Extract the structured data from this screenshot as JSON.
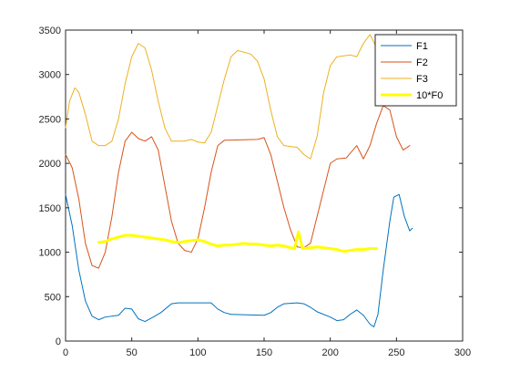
{
  "chart_data": {
    "type": "line",
    "xlim": [
      0,
      300
    ],
    "ylim": [
      0,
      3500
    ],
    "xticks": [
      0,
      50,
      100,
      150,
      200,
      250,
      300
    ],
    "yticks": [
      0,
      500,
      1000,
      1500,
      2000,
      2500,
      3000,
      3500
    ],
    "grid": false,
    "legend_position": "top-right",
    "series": [
      {
        "name": "F1",
        "color": "#0072BD",
        "width": 1,
        "points": [
          [
            0,
            1650
          ],
          [
            5,
            1300
          ],
          [
            10,
            800
          ],
          [
            15,
            450
          ],
          [
            20,
            280
          ],
          [
            25,
            240
          ],
          [
            30,
            270
          ],
          [
            40,
            290
          ],
          [
            45,
            370
          ],
          [
            50,
            360
          ],
          [
            55,
            250
          ],
          [
            60,
            220
          ],
          [
            65,
            260
          ],
          [
            72,
            320
          ],
          [
            80,
            420
          ],
          [
            85,
            430
          ],
          [
            110,
            430
          ],
          [
            115,
            360
          ],
          [
            120,
            320
          ],
          [
            125,
            300
          ],
          [
            150,
            290
          ],
          [
            155,
            320
          ],
          [
            160,
            380
          ],
          [
            165,
            420
          ],
          [
            175,
            430
          ],
          [
            180,
            420
          ],
          [
            185,
            380
          ],
          [
            190,
            330
          ],
          [
            200,
            270
          ],
          [
            205,
            230
          ],
          [
            210,
            240
          ],
          [
            215,
            300
          ],
          [
            220,
            350
          ],
          [
            225,
            290
          ],
          [
            230,
            190
          ],
          [
            233,
            160
          ],
          [
            236,
            300
          ],
          [
            240,
            800
          ],
          [
            245,
            1350
          ],
          [
            248,
            1620
          ],
          [
            252,
            1650
          ],
          [
            256,
            1400
          ],
          [
            260,
            1240
          ],
          [
            262,
            1270
          ]
        ]
      },
      {
        "name": "F2",
        "color": "#D95319",
        "width": 1,
        "points": [
          [
            0,
            2100
          ],
          [
            5,
            1950
          ],
          [
            10,
            1600
          ],
          [
            15,
            1100
          ],
          [
            20,
            850
          ],
          [
            25,
            820
          ],
          [
            30,
            1000
          ],
          [
            35,
            1400
          ],
          [
            40,
            1900
          ],
          [
            45,
            2250
          ],
          [
            50,
            2350
          ],
          [
            55,
            2280
          ],
          [
            60,
            2250
          ],
          [
            65,
            2300
          ],
          [
            70,
            2150
          ],
          [
            75,
            1750
          ],
          [
            80,
            1350
          ],
          [
            85,
            1100
          ],
          [
            90,
            1020
          ],
          [
            95,
            1000
          ],
          [
            100,
            1150
          ],
          [
            105,
            1500
          ],
          [
            110,
            1900
          ],
          [
            115,
            2200
          ],
          [
            120,
            2260
          ],
          [
            145,
            2270
          ],
          [
            150,
            2290
          ],
          [
            155,
            2100
          ],
          [
            160,
            1800
          ],
          [
            165,
            1500
          ],
          [
            170,
            1250
          ],
          [
            175,
            1060
          ],
          [
            180,
            1050
          ],
          [
            185,
            1100
          ],
          [
            190,
            1400
          ],
          [
            195,
            1700
          ],
          [
            200,
            2000
          ],
          [
            205,
            2050
          ],
          [
            212,
            2060
          ],
          [
            220,
            2200
          ],
          [
            225,
            2050
          ],
          [
            230,
            2200
          ],
          [
            235,
            2450
          ],
          [
            240,
            2650
          ],
          [
            245,
            2600
          ],
          [
            250,
            2300
          ],
          [
            255,
            2150
          ],
          [
            260,
            2200
          ]
        ]
      },
      {
        "name": "F3",
        "color": "#EDB120",
        "width": 1,
        "points": [
          [
            0,
            2400
          ],
          [
            3,
            2700
          ],
          [
            7,
            2850
          ],
          [
            10,
            2800
          ],
          [
            15,
            2550
          ],
          [
            20,
            2250
          ],
          [
            25,
            2200
          ],
          [
            30,
            2200
          ],
          [
            35,
            2250
          ],
          [
            40,
            2500
          ],
          [
            45,
            2900
          ],
          [
            50,
            3200
          ],
          [
            55,
            3350
          ],
          [
            60,
            3300
          ],
          [
            65,
            3050
          ],
          [
            70,
            2700
          ],
          [
            75,
            2400
          ],
          [
            80,
            2250
          ],
          [
            90,
            2250
          ],
          [
            95,
            2270
          ],
          [
            100,
            2240
          ],
          [
            105,
            2230
          ],
          [
            110,
            2350
          ],
          [
            115,
            2650
          ],
          [
            120,
            2950
          ],
          [
            125,
            3200
          ],
          [
            130,
            3270
          ],
          [
            140,
            3230
          ],
          [
            145,
            3150
          ],
          [
            150,
            2950
          ],
          [
            155,
            2600
          ],
          [
            160,
            2300
          ],
          [
            165,
            2200
          ],
          [
            175,
            2180
          ],
          [
            180,
            2100
          ],
          [
            185,
            2050
          ],
          [
            190,
            2300
          ],
          [
            195,
            2800
          ],
          [
            200,
            3100
          ],
          [
            205,
            3200
          ],
          [
            215,
            3220
          ],
          [
            220,
            3200
          ],
          [
            225,
            3350
          ],
          [
            230,
            3450
          ],
          [
            235,
            3300
          ],
          [
            240,
            3350
          ],
          [
            245,
            3400
          ]
        ]
      },
      {
        "name": "10*F0",
        "color": "#FFFF00",
        "width": 3,
        "points": [
          [
            25,
            1110
          ],
          [
            30,
            1120
          ],
          [
            35,
            1150
          ],
          [
            40,
            1170
          ],
          [
            45,
            1190
          ],
          [
            50,
            1190
          ],
          [
            55,
            1180
          ],
          [
            60,
            1170
          ],
          [
            65,
            1160
          ],
          [
            70,
            1150
          ],
          [
            75,
            1140
          ],
          [
            80,
            1120
          ],
          [
            85,
            1110
          ],
          [
            90,
            1120
          ],
          [
            95,
            1130
          ],
          [
            100,
            1140
          ],
          [
            105,
            1120
          ],
          [
            110,
            1090
          ],
          [
            115,
            1070
          ],
          [
            120,
            1080
          ],
          [
            125,
            1080
          ],
          [
            130,
            1090
          ],
          [
            135,
            1100
          ],
          [
            140,
            1090
          ],
          [
            145,
            1090
          ],
          [
            150,
            1080
          ],
          [
            155,
            1070
          ],
          [
            160,
            1080
          ],
          [
            165,
            1070
          ],
          [
            170,
            1050
          ],
          [
            173,
            1040
          ],
          [
            176,
            1230
          ],
          [
            179,
            1040
          ],
          [
            185,
            1050
          ],
          [
            190,
            1060
          ],
          [
            195,
            1050
          ],
          [
            200,
            1040
          ],
          [
            205,
            1030
          ],
          [
            210,
            1010
          ],
          [
            215,
            1020
          ],
          [
            220,
            1030
          ],
          [
            225,
            1030
          ],
          [
            230,
            1040
          ],
          [
            235,
            1040
          ]
        ]
      }
    ]
  }
}
